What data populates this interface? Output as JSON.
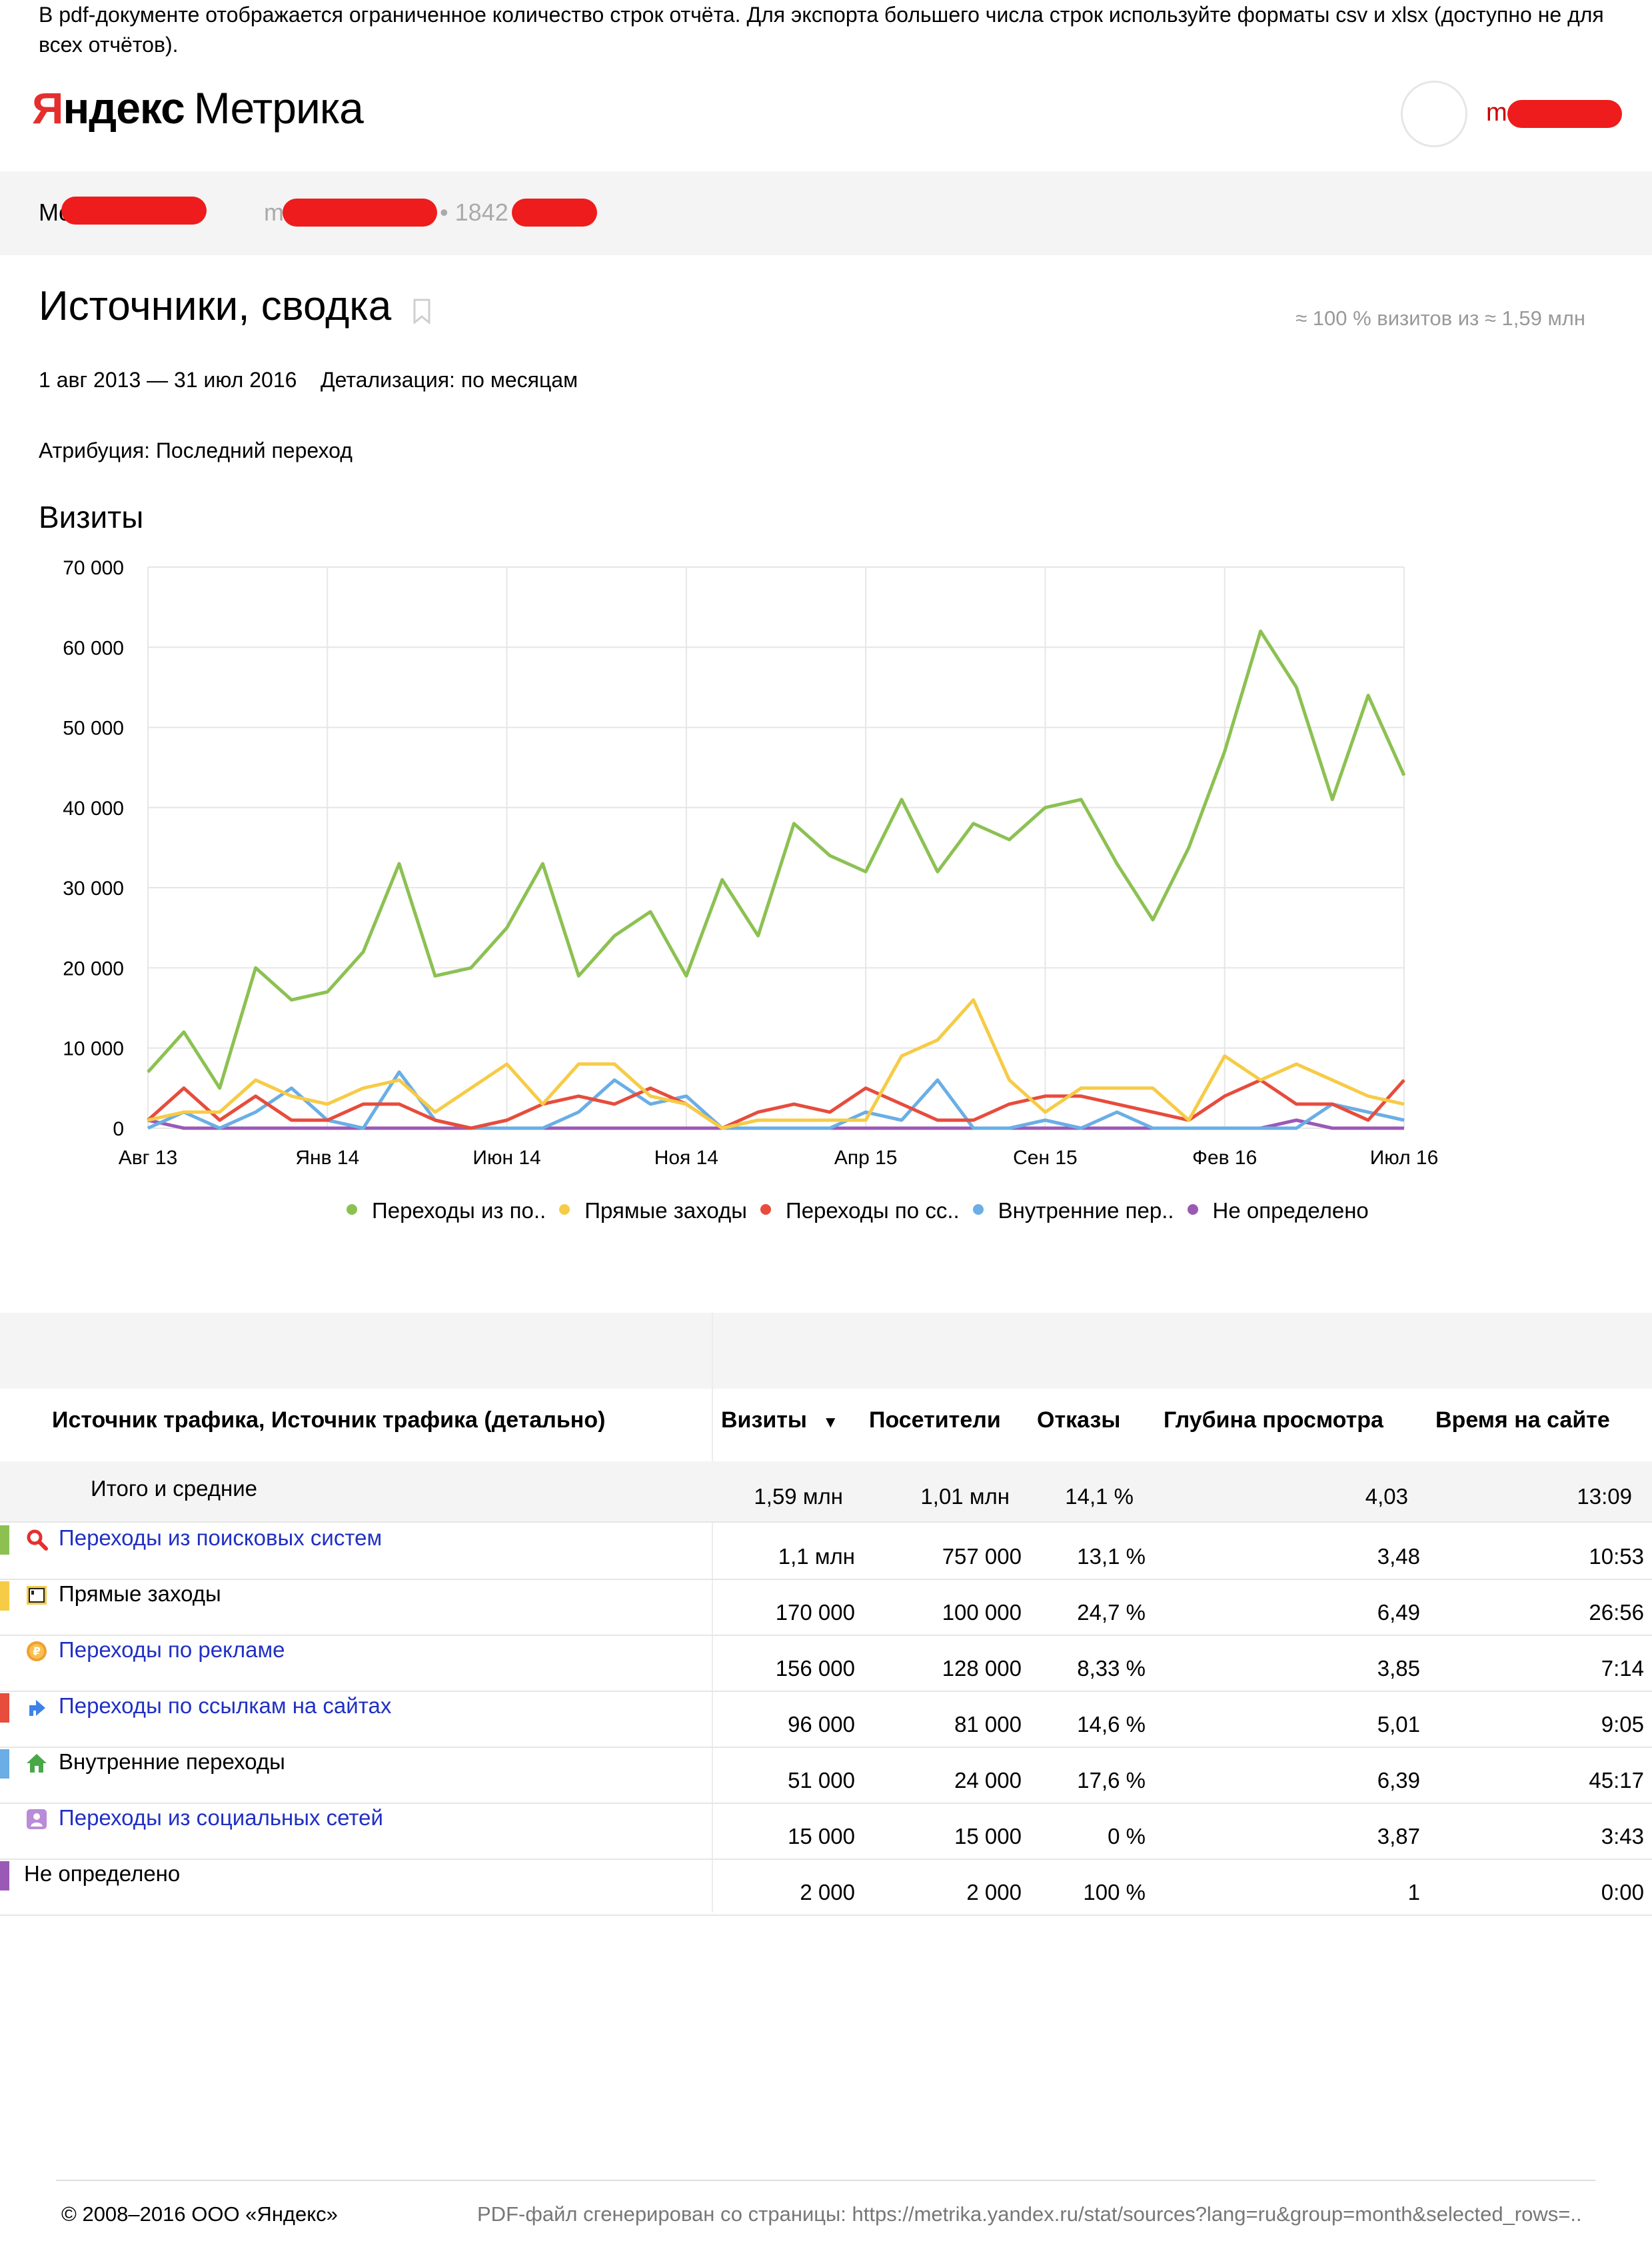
{
  "notice": "В pdf-документе отображается ограниченное количество строк отчёта. Для экспорта большего числа строк используйте форматы csv и xlsx (доступно не для всех отчётов).",
  "logo": {
    "ya": "Я",
    "ndex": "ндекс",
    "product": "Метрика"
  },
  "user": {
    "name_visible": "mo"
  },
  "breadcrumb": {
    "counter_name_visible": "Mo",
    "site_visible": "m",
    "counter_id_visible": "1842"
  },
  "page": {
    "title": "Источники, сводка",
    "sampling": "≈ 100 % визитов из ≈ 1,59 млн",
    "period": "1 авг 2013 — 31 июл 2016",
    "detail": "Детализация: по месяцам",
    "attribution": "Атрибуция: Последний переход",
    "chart_title": "Визиты"
  },
  "colors": {
    "search": "#8cc152",
    "direct": "#f6cb46",
    "links": "#e74c3c",
    "internal": "#6aaee5",
    "undefined": "#9b59b6",
    "grid": "#e6e6e6"
  },
  "chart_data": {
    "type": "line",
    "title": "Визиты",
    "x": [
      "Авг 13",
      "Сен 13",
      "Окт 13",
      "Ноя 13",
      "Дек 13",
      "Янв 14",
      "Фев 14",
      "Мар 14",
      "Апр 14",
      "Май 14",
      "Июн 14",
      "Июл 14",
      "Авг 14",
      "Сен 14",
      "Окт 14",
      "Ноя 14",
      "Дек 14",
      "Янв 15",
      "Фев 15",
      "Мар 15",
      "Апр 15",
      "Май 15",
      "Июн 15",
      "Июл 15",
      "Авг 15",
      "Сен 15",
      "Окт 15",
      "Ноя 15",
      "Дек 15",
      "Янв 16",
      "Фев 16",
      "Мар 16",
      "Апр 16",
      "Май 16",
      "Июн 16",
      "Июл 16"
    ],
    "xticks": [
      "Авг 13",
      "Янв 14",
      "Июн 14",
      "Ноя 14",
      "Апр 15",
      "Сен 15",
      "Фев 16",
      "Июл 16"
    ],
    "xtick_index": [
      0,
      5,
      10,
      15,
      20,
      25,
      30,
      35
    ],
    "ylim": [
      0,
      70000
    ],
    "yticks": [
      "0",
      "10 000",
      "20 000",
      "30 000",
      "40 000",
      "50 000",
      "60 000",
      "70 000"
    ],
    "ytick_values": [
      0,
      10000,
      20000,
      30000,
      40000,
      50000,
      60000,
      70000
    ],
    "grid": true,
    "legend_position": "bottom",
    "series": [
      {
        "name": "Переходы из по..",
        "color": "#8cc152",
        "values": [
          7000,
          12000,
          5000,
          20000,
          16000,
          17000,
          22000,
          33000,
          19000,
          20000,
          25000,
          33000,
          19000,
          24000,
          27000,
          19000,
          31000,
          24000,
          38000,
          34000,
          32000,
          41000,
          32000,
          38000,
          36000,
          40000,
          41000,
          33000,
          26000,
          35000,
          47000,
          62000,
          55000,
          41000,
          54000,
          44000
        ]
      },
      {
        "name": "Прямые заходы",
        "color": "#f6cb46",
        "values": [
          1000,
          2000,
          2000,
          6000,
          4000,
          3000,
          5000,
          6000,
          2000,
          5000,
          8000,
          3000,
          8000,
          8000,
          4000,
          3000,
          0,
          1000,
          1000,
          1000,
          1000,
          9000,
          11000,
          16000,
          6000,
          2000,
          5000,
          5000,
          5000,
          1000,
          9000,
          6000,
          8000,
          6000,
          4000,
          3000
        ]
      },
      {
        "name": "Переходы по сс..",
        "color": "#e74c3c",
        "values": [
          1000,
          5000,
          1000,
          4000,
          1000,
          1000,
          3000,
          3000,
          1000,
          0,
          1000,
          3000,
          4000,
          3000,
          5000,
          3000,
          0,
          2000,
          3000,
          2000,
          5000,
          3000,
          1000,
          1000,
          3000,
          4000,
          4000,
          3000,
          2000,
          1000,
          4000,
          6000,
          3000,
          3000,
          1000,
          6000
        ]
      },
      {
        "name": "Внутренние пер..",
        "color": "#6aaee5",
        "values": [
          0,
          2000,
          0,
          2000,
          5000,
          1000,
          0,
          7000,
          1000,
          0,
          0,
          0,
          2000,
          6000,
          3000,
          4000,
          0,
          0,
          0,
          0,
          2000,
          1000,
          6000,
          0,
          0,
          1000,
          0,
          2000,
          0,
          0,
          0,
          0,
          0,
          3000,
          2000,
          1000
        ]
      },
      {
        "name": "Не определено",
        "color": "#9b59b6",
        "values": [
          1000,
          0,
          0,
          0,
          0,
          0,
          0,
          0,
          0,
          0,
          0,
          0,
          0,
          0,
          0,
          0,
          0,
          0,
          0,
          0,
          0,
          0,
          0,
          0,
          0,
          0,
          0,
          0,
          0,
          0,
          0,
          0,
          1000,
          0,
          0,
          0
        ]
      }
    ]
  },
  "table": {
    "headers": {
      "dimension": "Источник трафика, Источник трафика (детально)",
      "visits": "Визиты",
      "sort": "▼",
      "visitors": "Посетители",
      "bounces": "Отказы",
      "depth": "Глубина просмотра",
      "time": "Время на сайте"
    },
    "total": {
      "label": "Итого и средние",
      "visits": "1,59 млн",
      "visitors": "1,01 млн",
      "bounces": "14,1 %",
      "depth": "4,03",
      "time": "13:09"
    },
    "rows": [
      {
        "label": "Переходы из поисковых систем",
        "link": true,
        "icon": "search-icon",
        "stripe": "#8cc152",
        "visits": "1,1 млн",
        "visitors": "757 000",
        "bounces": "13,1 %",
        "depth": "3,48",
        "time": "10:53"
      },
      {
        "label": "Прямые заходы",
        "link": false,
        "icon": "direct-icon",
        "stripe": "#f6cb46",
        "visits": "170 000",
        "visitors": "100 000",
        "bounces": "24,7 %",
        "depth": "6,49",
        "time": "26:56"
      },
      {
        "label": "Переходы по рекламе",
        "link": true,
        "icon": "ad-icon",
        "stripe": "",
        "visits": "156 000",
        "visitors": "128 000",
        "bounces": "8,33 %",
        "depth": "3,85",
        "time": "7:14"
      },
      {
        "label": "Переходы по ссылкам на сайтах",
        "link": true,
        "icon": "link-arrow-icon",
        "stripe": "#e74c3c",
        "visits": "96 000",
        "visitors": "81 000",
        "bounces": "14,6 %",
        "depth": "5,01",
        "time": "9:05"
      },
      {
        "label": "Внутренние переходы",
        "link": false,
        "icon": "home-icon",
        "stripe": "#6aaee5",
        "visits": "51 000",
        "visitors": "24 000",
        "bounces": "17,6 %",
        "depth": "6,39",
        "time": "45:17"
      },
      {
        "label": "Переходы из социальных сетей",
        "link": true,
        "icon": "social-icon",
        "stripe": "",
        "visits": "15 000",
        "visitors": "15 000",
        "bounces": "0 %",
        "depth": "3,87",
        "time": "3:43"
      },
      {
        "label": "Не определено",
        "link": false,
        "icon": "",
        "stripe": "#9b59b6",
        "visits": "2 000",
        "visitors": "2 000",
        "bounces": "100 %",
        "depth": "1",
        "time": "0:00"
      }
    ]
  },
  "footer": {
    "copyright": "© 2008–2016 ООО «Яндекс»",
    "source": "PDF-файл сгенерирован со страницы: https://metrika.yandex.ru/stat/sources?lang=ru&group=month&selected_rows=.."
  }
}
